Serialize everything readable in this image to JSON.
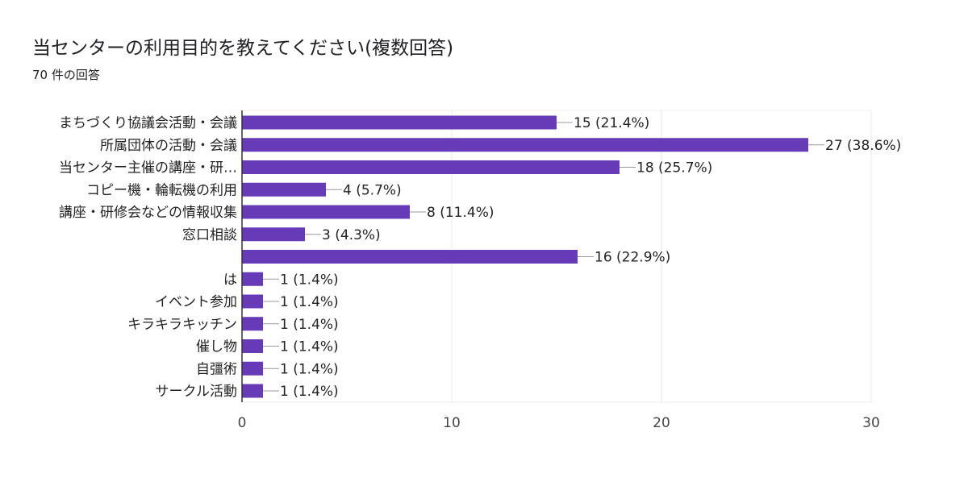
{
  "chart_data": {
    "type": "bar",
    "orientation": "horizontal",
    "title": "当センターの利用目的を教えてください(複数回答)",
    "subtitle": "70 件の回答",
    "categories": [
      "まちづくり協議会活動・会議",
      "所属団体の活動・会議",
      "当センター主催の講座・研…",
      "コピー機・輪転機の利用",
      "講座・研修会などの情報収集",
      "窓口相談",
      "",
      "は",
      "イベント参加",
      "キラキラキッチン",
      "催し物",
      "自彊術",
      "サークル活動"
    ],
    "values": [
      15,
      27,
      18,
      4,
      8,
      3,
      16,
      1,
      1,
      1,
      1,
      1,
      1
    ],
    "data_labels": [
      "15 (21.4%)",
      "27 (38.6%)",
      "18 (25.7%)",
      "4 (5.7%)",
      "8 (11.4%)",
      "3 (4.3%)",
      "16 (22.9%)",
      "1 (1.4%)",
      "1 (1.4%)",
      "1 (1.4%)",
      "1 (1.4%)",
      "1 (1.4%)",
      "1 (1.4%)"
    ],
    "xlim": [
      0,
      30
    ],
    "xticks": [
      "0",
      "10",
      "20",
      "30"
    ],
    "grid": true,
    "bar_color": "#673ab7"
  }
}
